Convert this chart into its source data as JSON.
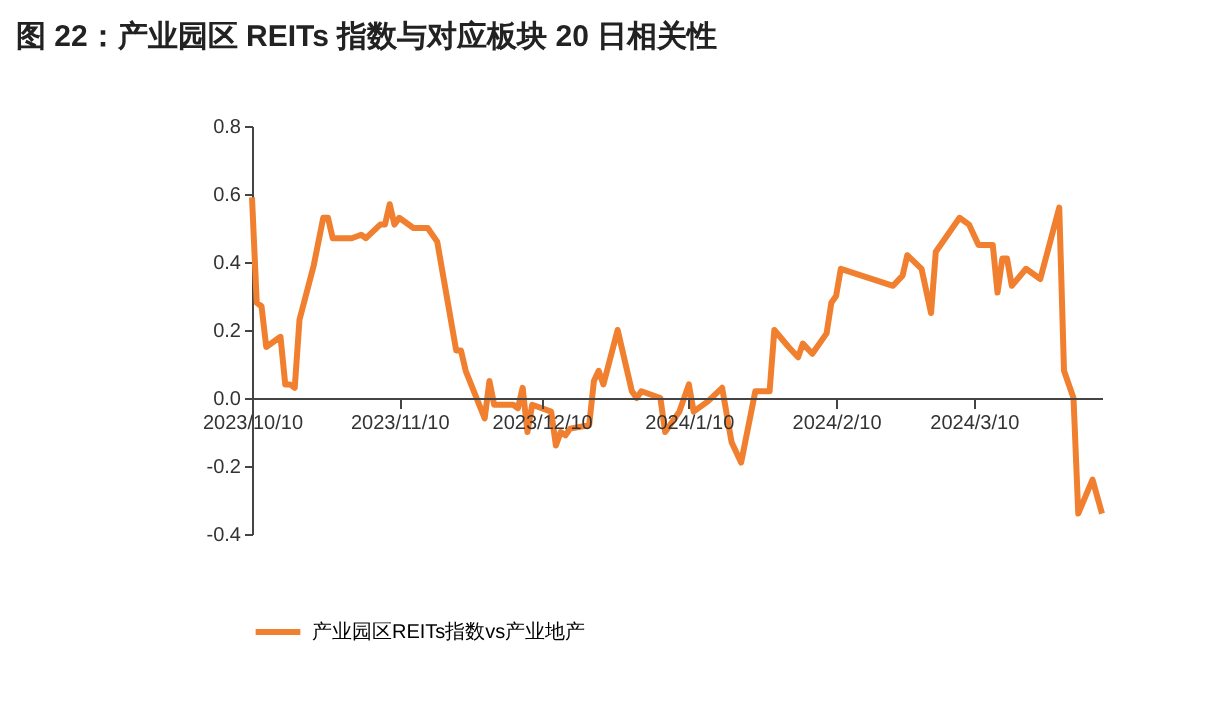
{
  "chart_data": {
    "type": "line",
    "title": "图 22：产业园区 REITs 指数与对应板块 20 日相关性",
    "x": [
      "2023-10-10",
      "2023-10-11",
      "2023-10-12",
      "2023-10-13",
      "2023-10-16",
      "2023-10-17",
      "2023-10-18",
      "2023-10-19",
      "2023-10-20",
      "2023-10-23",
      "2023-10-25",
      "2023-10-26",
      "2023-10-27",
      "2023-10-31",
      "2023-11-02",
      "2023-11-03",
      "2023-11-06",
      "2023-11-07",
      "2023-11-08",
      "2023-11-09",
      "2023-11-10",
      "2023-11-13",
      "2023-11-16",
      "2023-11-18",
      "2023-11-22",
      "2023-11-23",
      "2023-11-24",
      "2023-11-28",
      "2023-11-29",
      "2023-11-30",
      "2023-12-04",
      "2023-12-05",
      "2023-12-06",
      "2023-12-07",
      "2023-12-08",
      "2023-12-12",
      "2023-12-13",
      "2023-12-14",
      "2023-12-15",
      "2023-12-16",
      "2023-12-20",
      "2023-12-21",
      "2023-12-22",
      "2023-12-23",
      "2023-12-26",
      "2023-12-29",
      "2023-12-30",
      "2023-12-31",
      "2024-01-04",
      "2024-01-05",
      "2024-01-08",
      "2024-01-10",
      "2024-01-11",
      "2024-01-14",
      "2024-01-17",
      "2024-01-19",
      "2024-01-21",
      "2024-01-24",
      "2024-01-27",
      "2024-01-28",
      "2024-01-31",
      "2024-02-02",
      "2024-02-03",
      "2024-02-05",
      "2024-02-08",
      "2024-02-09",
      "2024-02-10",
      "2024-02-11",
      "2024-02-22",
      "2024-02-24",
      "2024-02-25",
      "2024-02-28",
      "2024-03-01",
      "2024-03-02",
      "2024-03-03",
      "2024-03-07",
      "2024-03-09",
      "2024-03-11",
      "2024-03-14",
      "2024-03-15",
      "2024-03-16",
      "2024-03-17",
      "2024-03-18",
      "2024-03-21",
      "2024-03-24",
      "2024-03-28",
      "2024-03-29",
      "2024-03-31",
      "2024-04-01",
      "2024-04-04",
      "2024-04-06"
    ],
    "series": [
      {
        "name": "产业园区REITs指数vs产业地产",
        "color": "#f0802f",
        "values": [
          0.59,
          0.28,
          0.27,
          0.15,
          0.18,
          0.04,
          0.04,
          0.03,
          0.23,
          0.39,
          0.53,
          0.53,
          0.47,
          0.47,
          0.48,
          0.47,
          0.51,
          0.51,
          0.57,
          0.51,
          0.53,
          0.5,
          0.5,
          0.46,
          0.14,
          0.14,
          0.08,
          -0.06,
          0.05,
          -0.02,
          -0.02,
          -0.03,
          0.03,
          -0.1,
          -0.02,
          -0.04,
          -0.14,
          -0.1,
          -0.11,
          -0.09,
          -0.08,
          0.05,
          0.08,
          0.04,
          0.2,
          0.02,
          0.0,
          0.02,
          0.0,
          -0.1,
          -0.04,
          0.04,
          -0.04,
          -0.01,
          0.03,
          -0.13,
          -0.19,
          0.02,
          0.02,
          0.2,
          0.15,
          0.12,
          0.16,
          0.13,
          0.19,
          0.28,
          0.3,
          0.38,
          0.33,
          0.36,
          0.42,
          0.38,
          0.25,
          0.43,
          0.45,
          0.53,
          0.51,
          0.45,
          0.45,
          0.31,
          0.41,
          0.41,
          0.33,
          0.38,
          0.35,
          0.56,
          0.08,
          0.0,
          -0.34,
          -0.24,
          -0.34
        ]
      }
    ],
    "xlim": [
      "2023-10-10",
      "2024-04-06"
    ],
    "xticks": [
      {
        "value": "2023-10-10",
        "label": "2023/10/10"
      },
      {
        "value": "2023-11-10",
        "label": "2023/11/10"
      },
      {
        "value": "2023-12-10",
        "label": "2023/12/10"
      },
      {
        "value": "2024-01-10",
        "label": "2024/1/10"
      },
      {
        "value": "2024-02-10",
        "label": "2024/2/10"
      },
      {
        "value": "2024-03-10",
        "label": "2024/3/10"
      }
    ],
    "ylim": [
      -0.4,
      0.8
    ],
    "yticks": [
      -0.4,
      -0.2,
      {
        "value": 0,
        "label": "0.0"
      },
      0.2,
      0.4,
      0.6,
      0.8
    ],
    "grid": false,
    "legend": "bottom",
    "marker": "none",
    "line_style": "solid"
  }
}
